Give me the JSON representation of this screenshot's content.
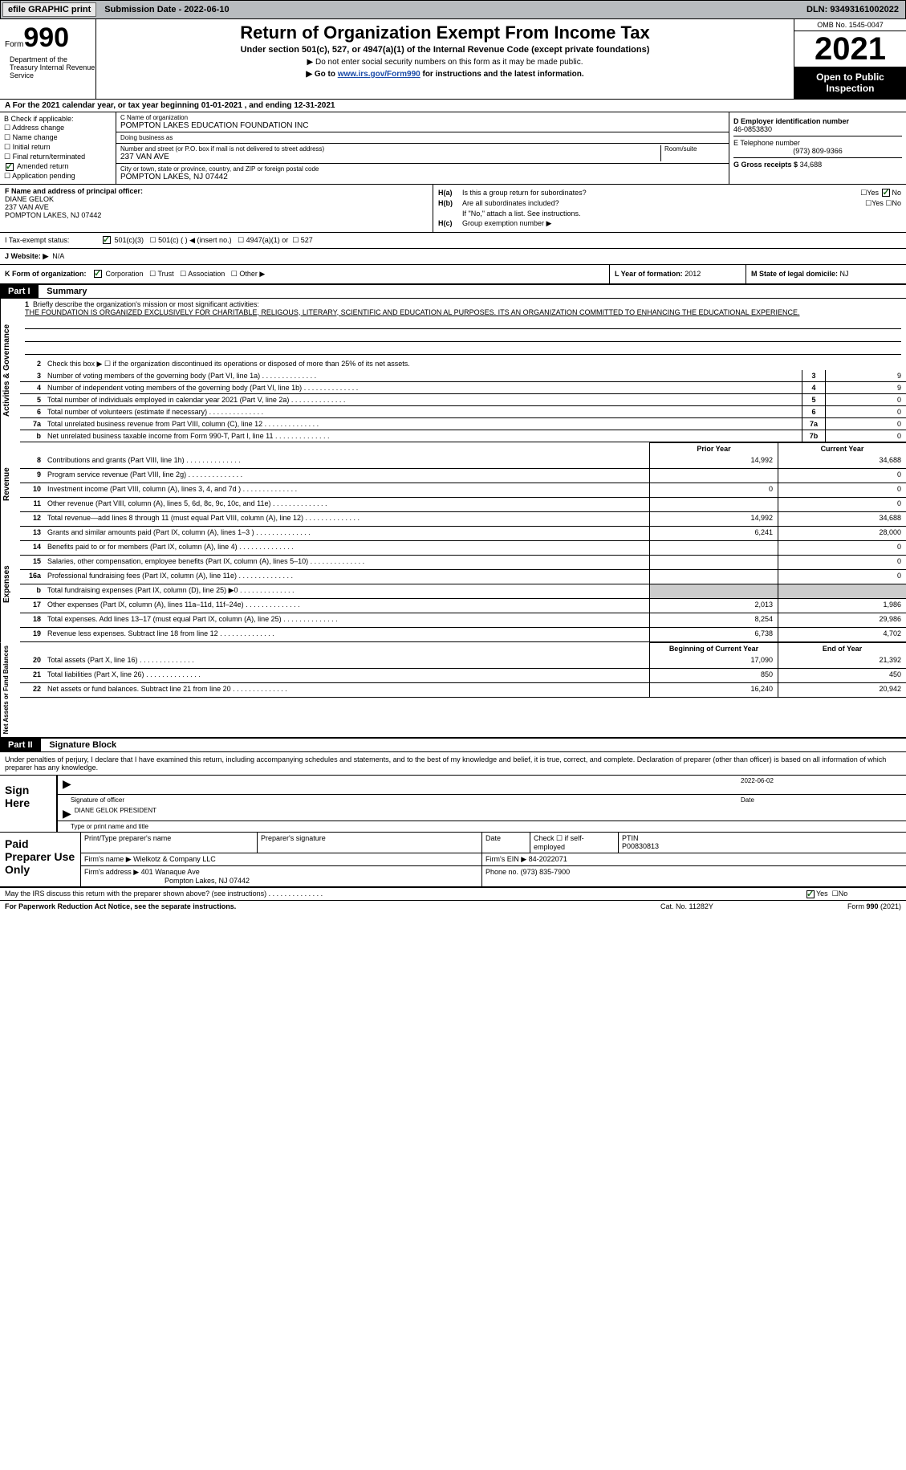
{
  "topbar": {
    "efile": "efile GRAPHIC print",
    "submission": "Submission Date - 2022-06-10",
    "dln": "DLN: 93493161002022"
  },
  "header": {
    "form_label": "Form",
    "form_num": "990",
    "title": "Return of Organization Exempt From Income Tax",
    "sub1": "Under section 501(c), 527, or 4947(a)(1) of the Internal Revenue Code (except private foundations)",
    "sub2": "▶ Do not enter social security numbers on this form as it may be made public.",
    "sub3_pre": "▶ Go to ",
    "sub3_link": "www.irs.gov/Form990",
    "sub3_post": " for instructions and the latest information.",
    "omb": "OMB No. 1545-0047",
    "year": "2021",
    "open": "Open to Public Inspection",
    "dept": "Department of the Treasury Internal Revenue Service"
  },
  "row_a": "A For the 2021 calendar year, or tax year beginning 01-01-2021    , and ending 12-31-2021",
  "col_b": {
    "hdr": "B Check if applicable:",
    "items": [
      "Address change",
      "Name change",
      "Initial return",
      "Final return/terminated",
      "Amended return",
      "Application pending"
    ],
    "checked_idx": 4
  },
  "col_c": {
    "name_lbl": "C Name of organization",
    "name": "POMPTON LAKES EDUCATION FOUNDATION INC",
    "dba_lbl": "Doing business as",
    "dba": "",
    "street_lbl": "Number and street (or P.O. box if mail is not delivered to street address)",
    "room_lbl": "Room/suite",
    "street": "237 VAN AVE",
    "city_lbl": "City or town, state or province, country, and ZIP or foreign postal code",
    "city": "POMPTON LAKES, NJ  07442"
  },
  "col_d": {
    "ein_lbl": "D Employer identification number",
    "ein": "46-0853830",
    "phone_lbl": "E Telephone number",
    "phone": "(973) 809-9366",
    "gross_lbl": "G Gross receipts $",
    "gross": "34,688"
  },
  "col_f": {
    "lbl": "F Name and address of principal officer:",
    "name": "DIANE GELOK",
    "street": "237 VAN AVE",
    "city": "POMPTON LAKES, NJ  07442"
  },
  "col_h": {
    "ha": "H(a)",
    "ha_txt": "Is this a group return for subordinates?",
    "ha_no": true,
    "hb": "H(b)",
    "hb_txt": "Are all subordinates included?",
    "hb_note": "If \"No,\" attach a list. See instructions.",
    "hc": "H(c)",
    "hc_txt": "Group exemption number ▶"
  },
  "tax_status": {
    "lbl": "I   Tax-exempt status:",
    "opts": [
      "501(c)(3)",
      "501(c) (  ) ◀ (insert no.)",
      "4947(a)(1) or",
      "527"
    ],
    "checked": 0
  },
  "website": {
    "lbl": "J   Website: ▶",
    "val": "N/A"
  },
  "k_row": {
    "lbl": "K Form of organization:",
    "opts": [
      "Corporation",
      "Trust",
      "Association",
      "Other ▶"
    ],
    "checked": 0,
    "year_lbl": "L Year of formation:",
    "year": "2012",
    "state_lbl": "M State of legal domicile:",
    "state": "NJ"
  },
  "part1": {
    "hdr": "Part I",
    "title": "Summary"
  },
  "mission": {
    "num": "1",
    "lbl": "Briefly describe the organization's mission or most significant activities:",
    "text": "THE FOUNDATION IS ORGANIZED EXCLUSIVELY FOR CHARITABLE, RELIGOUS, LITERARY, SCIENTIFIC AND EDUCATION AL PURPOSES. ITS AN ORGANIZATION COMMITTED TO ENHANCING THE EDUCATIONAL EXPERIENCE."
  },
  "line2": "Check this box ▶ ☐  if the organization discontinued its operations or disposed of more than 25% of its net assets.",
  "gov_rows": [
    {
      "n": "3",
      "d": "Number of voting members of the governing body (Part VI, line 1a)",
      "box": "3",
      "v": "9"
    },
    {
      "n": "4",
      "d": "Number of independent voting members of the governing body (Part VI, line 1b)",
      "box": "4",
      "v": "9"
    },
    {
      "n": "5",
      "d": "Total number of individuals employed in calendar year 2021 (Part V, line 2a)",
      "box": "5",
      "v": "0"
    },
    {
      "n": "6",
      "d": "Total number of volunteers (estimate if necessary)",
      "box": "6",
      "v": "0"
    },
    {
      "n": "7a",
      "d": "Total unrelated business revenue from Part VIII, column (C), line 12",
      "box": "7a",
      "v": "0"
    },
    {
      "n": "b",
      "d": "Net unrelated business taxable income from Form 990-T, Part I, line 11",
      "box": "7b",
      "v": "0"
    }
  ],
  "col_hdrs": {
    "prior": "Prior Year",
    "current": "Current Year"
  },
  "revenue_rows": [
    {
      "n": "8",
      "d": "Contributions and grants (Part VIII, line 1h)",
      "p": "14,992",
      "c": "34,688"
    },
    {
      "n": "9",
      "d": "Program service revenue (Part VIII, line 2g)",
      "p": "",
      "c": "0"
    },
    {
      "n": "10",
      "d": "Investment income (Part VIII, column (A), lines 3, 4, and 7d )",
      "p": "0",
      "c": "0"
    },
    {
      "n": "11",
      "d": "Other revenue (Part VIII, column (A), lines 5, 6d, 8c, 9c, 10c, and 11e)",
      "p": "",
      "c": "0"
    },
    {
      "n": "12",
      "d": "Total revenue—add lines 8 through 11 (must equal Part VIII, column (A), line 12)",
      "p": "14,992",
      "c": "34,688"
    }
  ],
  "expense_rows": [
    {
      "n": "13",
      "d": "Grants and similar amounts paid (Part IX, column (A), lines 1–3 )",
      "p": "6,241",
      "c": "28,000"
    },
    {
      "n": "14",
      "d": "Benefits paid to or for members (Part IX, column (A), line 4)",
      "p": "",
      "c": "0"
    },
    {
      "n": "15",
      "d": "Salaries, other compensation, employee benefits (Part IX, column (A), lines 5–10)",
      "p": "",
      "c": "0"
    },
    {
      "n": "16a",
      "d": "Professional fundraising fees (Part IX, column (A), line 11e)",
      "p": "",
      "c": "0"
    },
    {
      "n": "b",
      "d": "Total fundraising expenses (Part IX, column (D), line 25) ▶0",
      "p": "shade",
      "c": "shade"
    },
    {
      "n": "17",
      "d": "Other expenses (Part IX, column (A), lines 11a–11d, 11f–24e)",
      "p": "2,013",
      "c": "1,986"
    },
    {
      "n": "18",
      "d": "Total expenses. Add lines 13–17 (must equal Part IX, column (A), line 25)",
      "p": "8,254",
      "c": "29,986"
    },
    {
      "n": "19",
      "d": "Revenue less expenses. Subtract line 18 from line 12",
      "p": "6,738",
      "c": "4,702"
    }
  ],
  "net_hdrs": {
    "begin": "Beginning of Current Year",
    "end": "End of Year"
  },
  "net_rows": [
    {
      "n": "20",
      "d": "Total assets (Part X, line 16)",
      "p": "17,090",
      "c": "21,392"
    },
    {
      "n": "21",
      "d": "Total liabilities (Part X, line 26)",
      "p": "850",
      "c": "450"
    },
    {
      "n": "22",
      "d": "Net assets or fund balances. Subtract line 21 from line 20",
      "p": "16,240",
      "c": "20,942"
    }
  ],
  "side_labels": {
    "gov": "Activities & Governance",
    "rev": "Revenue",
    "exp": "Expenses",
    "net": "Net Assets or Fund Balances"
  },
  "part2": {
    "hdr": "Part II",
    "title": "Signature Block"
  },
  "sig_decl": "Under penalties of perjury, I declare that I have examined this return, including accompanying schedules and statements, and to the best of my knowledge and belief, it is true, correct, and complete. Declaration of preparer (other than officer) is based on all information of which preparer has any knowledge.",
  "sign_here": "Sign Here",
  "sig_lines": {
    "sig_officer": "Signature of officer",
    "sig_date": "2022-06-02",
    "date_lbl": "Date",
    "name": "DIANE GELOK PRESIDENT",
    "name_lbl": "Type or print name and title"
  },
  "paid_prep": "Paid Preparer Use Only",
  "prep": {
    "name_lbl": "Print/Type preparer's name",
    "sig_lbl": "Preparer's signature",
    "date_lbl": "Date",
    "self_lbl": "Check ☐ if self-employed",
    "ptin_lbl": "PTIN",
    "ptin": "P00830813",
    "firm_name_lbl": "Firm's name    ▶",
    "firm_name": "Wielkotz & Company LLC",
    "firm_ein_lbl": "Firm's EIN ▶",
    "firm_ein": "84-2022071",
    "firm_addr_lbl": "Firm's address ▶",
    "firm_addr1": "401 Wanaque Ave",
    "firm_addr2": "Pompton Lakes, NJ  07442",
    "phone_lbl": "Phone no.",
    "phone": "(973) 835-7900"
  },
  "discuss": "May the IRS discuss this return with the preparer shown above? (see instructions)",
  "discuss_yes": true,
  "footer": {
    "l": "For Paperwork Reduction Act Notice, see the separate instructions.",
    "m": "Cat. No. 11282Y",
    "r": "Form 990 (2021)"
  }
}
